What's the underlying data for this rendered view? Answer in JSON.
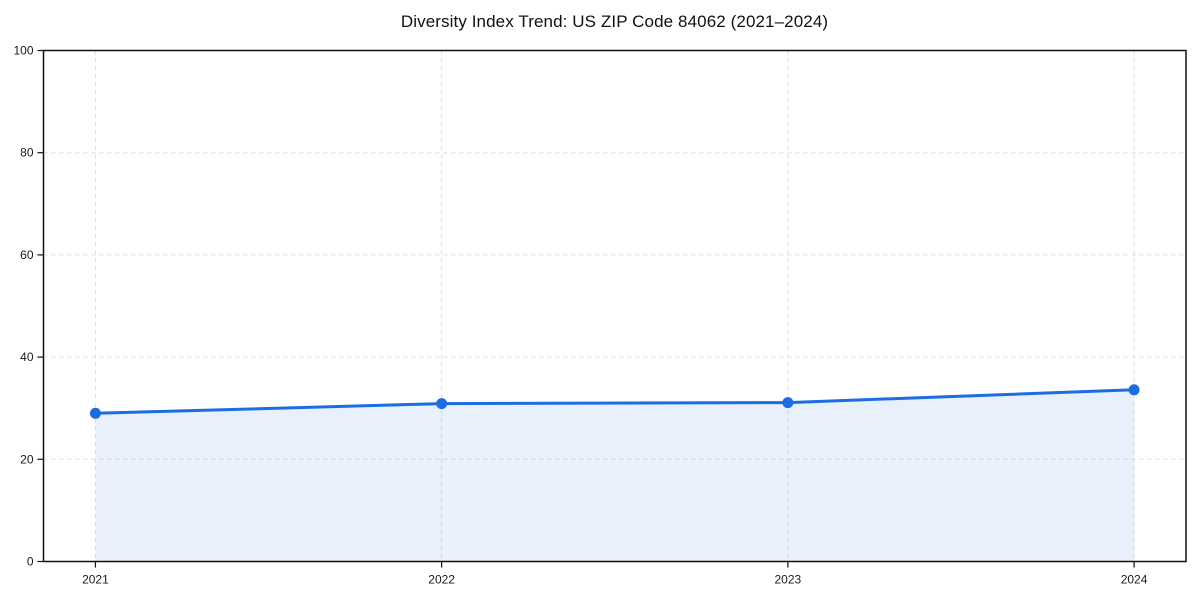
{
  "chart_data": {
    "type": "area",
    "title": "Diversity Index Trend: US ZIP Code 84062 (2021–2024)",
    "categories": [
      "2021",
      "2022",
      "2023",
      "2024"
    ],
    "series": [
      {
        "name": "Diversity Index",
        "values": [
          29.0,
          30.9,
          31.1,
          33.6
        ]
      }
    ],
    "xlabel": "",
    "ylabel": "",
    "ylim": [
      0,
      100
    ],
    "yticks": [
      0,
      20,
      40,
      60,
      80,
      100
    ],
    "x_margin_fraction": 0.05,
    "grid": "dashed-both",
    "legend": "none",
    "colors": {
      "line": "#1c6ce3",
      "marker": "#1c6ce3",
      "fill": "#1c6ce3",
      "fill_opacity": 0.1,
      "gridline": "#dedede",
      "spine": "#111111",
      "tick_label": "#1a1a1a",
      "background": "#ffffff"
    }
  }
}
